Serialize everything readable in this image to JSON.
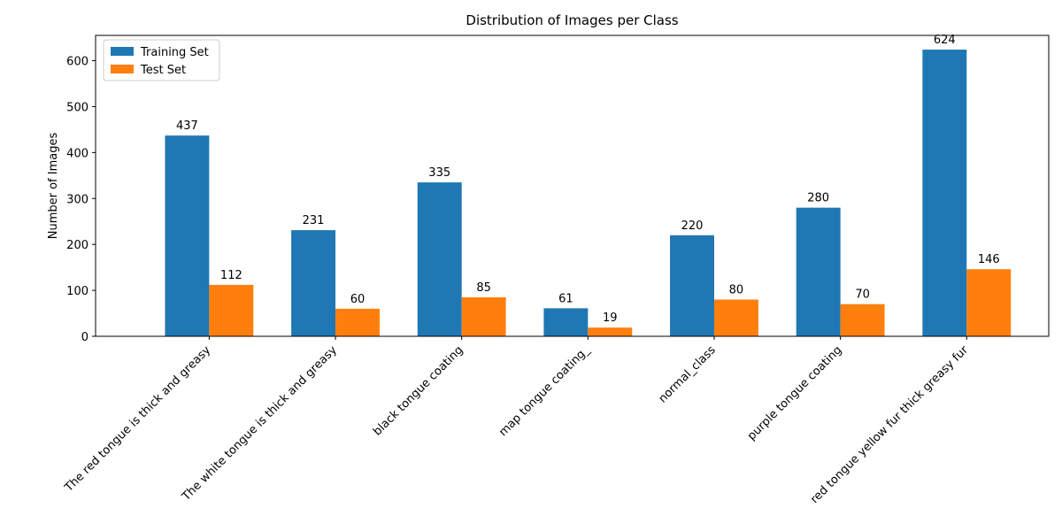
{
  "chart_data": {
    "type": "bar",
    "title": "Distribution of Images per Class",
    "xlabel": "",
    "ylabel": "Number of Images",
    "ylim": [
      0,
      655
    ],
    "yticks": [
      0,
      100,
      200,
      300,
      400,
      500,
      600
    ],
    "categories": [
      "The red tongue is thick and greasy",
      "The white tongue is thick and greasy",
      "black tongue coating",
      "map tongue coating_",
      "normal_class",
      "purple tongue coating",
      "red tongue yellow fur thick greasy fur"
    ],
    "series": [
      {
        "name": "Training Set",
        "color": "#1f77b4",
        "values": [
          437,
          231,
          335,
          61,
          220,
          280,
          624
        ]
      },
      {
        "name": "Test Set",
        "color": "#ff7f0e",
        "values": [
          112,
          60,
          85,
          19,
          80,
          70,
          146
        ]
      }
    ],
    "legend": "top-left",
    "grid": false
  }
}
